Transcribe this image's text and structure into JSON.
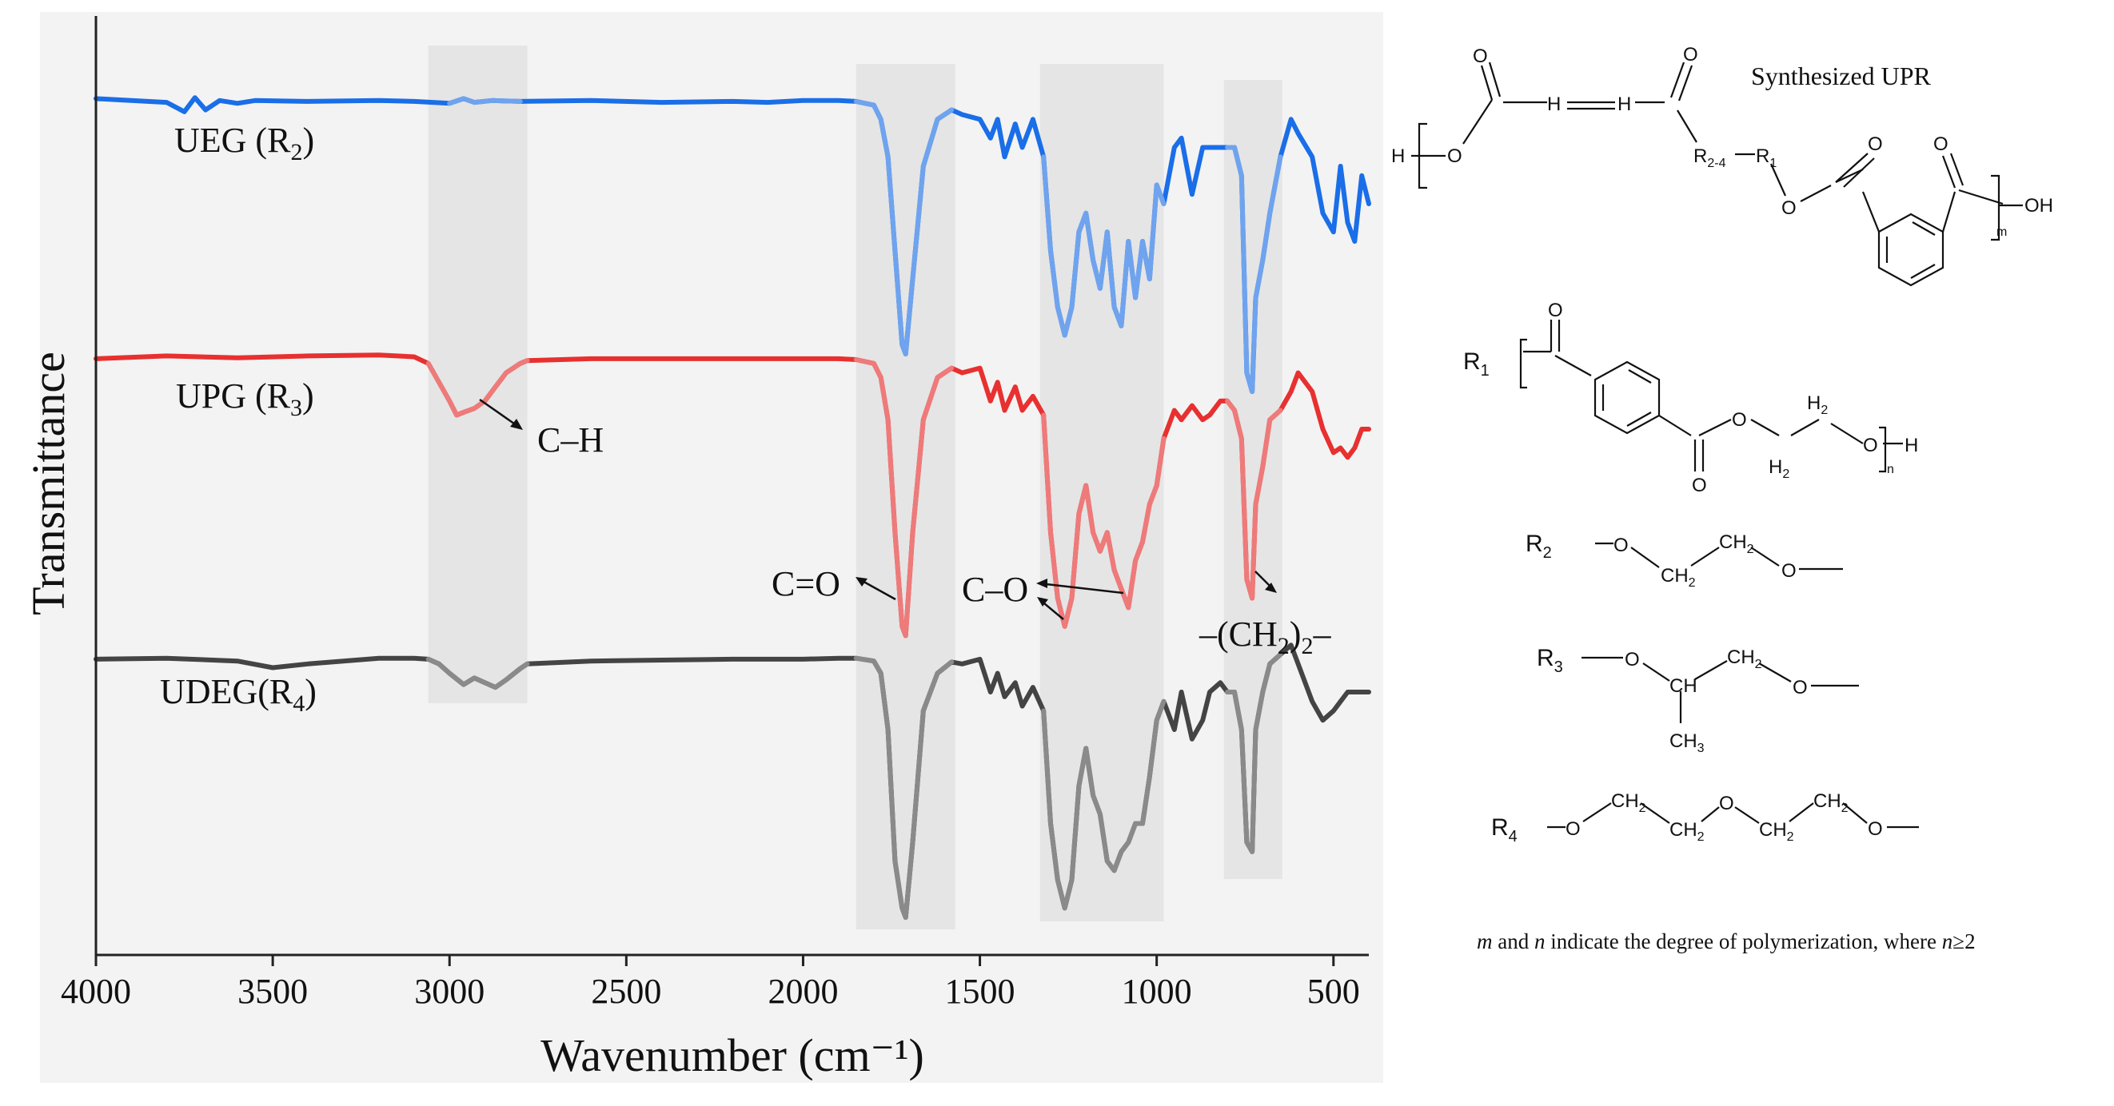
{
  "chart_data": {
    "type": "line",
    "title": "",
    "xlabel": "Wavenumber (cm⁻¹)",
    "ylabel": "Transmittance",
    "xlim": [
      4000,
      400
    ],
    "x_reversed": true,
    "xticks": [
      4000,
      3500,
      3000,
      2500,
      2000,
      1500,
      1000,
      500
    ],
    "xtick_labels": [
      "4000",
      "3500",
      "3000",
      "2500",
      "2000",
      "1500",
      "1000",
      "500"
    ],
    "y_unit": "relative transmittance (offset stacked, 0 = bottom of frame, 100 = top)",
    "ylim": [
      0,
      100
    ],
    "bands": [
      {
        "label": "C–H",
        "x_from": 3060,
        "x_to": 2780
      },
      {
        "label": "C=O",
        "x_from": 1850,
        "x_to": 1570
      },
      {
        "label": "C–O",
        "x_from": 1330,
        "x_to": 980
      },
      {
        "label": "–(CH₂)₂–",
        "x_from": 810,
        "x_to": 645
      }
    ],
    "series": [
      {
        "name": "UEG (R2)",
        "label_main": "UEG (R",
        "label_sub": "2",
        "label_end": ")",
        "color": "#1a6ee8",
        "color_light": "#6fa3ee",
        "x": [
          4000,
          3800,
          3750,
          3720,
          3690,
          3650,
          3600,
          3550,
          3400,
          3200,
          3100,
          3000,
          2960,
          2930,
          2880,
          2800,
          2600,
          2400,
          2200,
          2100,
          2000,
          1900,
          1850,
          1800,
          1780,
          1760,
          1740,
          1720,
          1710,
          1690,
          1660,
          1620,
          1580,
          1550,
          1500,
          1470,
          1450,
          1430,
          1400,
          1380,
          1350,
          1320,
          1300,
          1280,
          1260,
          1240,
          1220,
          1200,
          1180,
          1160,
          1140,
          1120,
          1100,
          1080,
          1060,
          1040,
          1020,
          1000,
          980,
          950,
          930,
          900,
          870,
          850,
          820,
          800,
          780,
          760,
          745,
          730,
          720,
          700,
          680,
          650,
          620,
          600,
          560,
          530,
          500,
          480,
          460,
          440,
          420,
          400
        ],
        "y": [
          91.2,
          90.8,
          89.8,
          91.3,
          90.0,
          91.0,
          90.7,
          91.0,
          90.9,
          91.0,
          90.9,
          90.7,
          91.2,
          90.8,
          91.0,
          90.9,
          91.0,
          90.8,
          90.9,
          90.8,
          91.0,
          91.0,
          90.9,
          90.5,
          89.0,
          85.0,
          75.0,
          65.0,
          64.0,
          72.0,
          84.0,
          89.0,
          90.0,
          89.5,
          89.0,
          87.0,
          89.0,
          85.0,
          88.5,
          86.0,
          89.0,
          85.0,
          75.0,
          69.0,
          66.0,
          69.0,
          77.0,
          79.0,
          74.0,
          71.0,
          77.0,
          69.0,
          67.0,
          76.0,
          70.0,
          76.0,
          72.0,
          82.0,
          80.0,
          86.0,
          87.0,
          81.0,
          86.0,
          86.0,
          86.0,
          86.0,
          86.0,
          83.0,
          62.0,
          60.0,
          70.0,
          74.0,
          79.0,
          85.0,
          89.0,
          87.5,
          85.0,
          79.0,
          77.0,
          84.0,
          78.0,
          76.0,
          83.0,
          80.0
        ]
      },
      {
        "name": "UPG (R3)",
        "label_main": "UPG (R",
        "label_sub": "3",
        "label_end": ")",
        "color": "#e83030",
        "color_light": "#ee7a7a",
        "x": [
          4000,
          3800,
          3600,
          3400,
          3200,
          3100,
          3060,
          3030,
          3000,
          2980,
          2960,
          2930,
          2900,
          2870,
          2840,
          2800,
          2780,
          2600,
          2400,
          2200,
          2000,
          1900,
          1850,
          1800,
          1780,
          1760,
          1740,
          1720,
          1710,
          1690,
          1660,
          1620,
          1580,
          1550,
          1500,
          1470,
          1450,
          1430,
          1400,
          1380,
          1350,
          1320,
          1300,
          1280,
          1260,
          1240,
          1220,
          1200,
          1180,
          1160,
          1140,
          1120,
          1100,
          1080,
          1060,
          1040,
          1020,
          1000,
          980,
          950,
          930,
          900,
          870,
          850,
          820,
          800,
          780,
          760,
          745,
          730,
          720,
          700,
          680,
          650,
          620,
          600,
          560,
          530,
          500,
          480,
          460,
          440,
          420,
          400
        ],
        "y": [
          63.5,
          63.8,
          63.6,
          63.8,
          63.9,
          63.7,
          63.0,
          61.0,
          59.0,
          57.5,
          57.8,
          58.2,
          59.0,
          60.5,
          62.0,
          63.0,
          63.3,
          63.5,
          63.5,
          63.5,
          63.5,
          63.5,
          63.4,
          63.0,
          61.5,
          57.0,
          45.0,
          35.0,
          34.0,
          45.0,
          57.0,
          61.5,
          62.5,
          62.0,
          62.5,
          59.0,
          61.0,
          58.0,
          60.5,
          58.0,
          59.5,
          57.5,
          45.0,
          38.0,
          35.0,
          38.0,
          47.0,
          50.0,
          45.0,
          43.0,
          45.0,
          41.0,
          39.0,
          37.0,
          42.0,
          44.0,
          48.0,
          50.0,
          55.0,
          58.0,
          57.0,
          58.5,
          57.0,
          57.5,
          59.0,
          59.0,
          58.0,
          55.0,
          40.0,
          38.0,
          48.0,
          52.0,
          57.0,
          58.0,
          60.0,
          62.0,
          60.0,
          56.0,
          53.5,
          54.0,
          53.0,
          54.0,
          56.0,
          56.0
        ]
      },
      {
        "name": "UDEG(R4)",
        "label_main": "UDEG(R",
        "label_sub": "4",
        "label_end": ")",
        "color": "#444444",
        "color_light": "#8a8a8a",
        "x": [
          4000,
          3800,
          3600,
          3500,
          3400,
          3200,
          3100,
          3060,
          3030,
          3000,
          2960,
          2930,
          2900,
          2870,
          2840,
          2800,
          2780,
          2600,
          2400,
          2200,
          2000,
          1900,
          1850,
          1800,
          1780,
          1760,
          1740,
          1720,
          1710,
          1690,
          1660,
          1620,
          1580,
          1550,
          1500,
          1470,
          1450,
          1430,
          1400,
          1380,
          1350,
          1320,
          1300,
          1280,
          1260,
          1240,
          1220,
          1200,
          1180,
          1160,
          1140,
          1120,
          1100,
          1080,
          1060,
          1040,
          1020,
          1000,
          980,
          950,
          930,
          900,
          870,
          850,
          820,
          800,
          780,
          760,
          745,
          730,
          720,
          700,
          680,
          650,
          620,
          600,
          560,
          530,
          500,
          480,
          460,
          440,
          420,
          400
        ],
        "y": [
          31.5,
          31.6,
          31.3,
          30.6,
          31.0,
          31.6,
          31.6,
          31.5,
          31.0,
          30.0,
          28.8,
          29.5,
          29.0,
          28.5,
          29.3,
          30.5,
          31.0,
          31.3,
          31.4,
          31.5,
          31.5,
          31.6,
          31.6,
          31.3,
          30.0,
          24.0,
          10.0,
          5.0,
          4.0,
          12.0,
          26.0,
          30.0,
          31.2,
          31.0,
          31.5,
          28.0,
          30.0,
          27.5,
          29.0,
          26.5,
          28.5,
          26.0,
          14.0,
          8.0,
          5.0,
          8.0,
          18.0,
          22.0,
          17.0,
          15.0,
          10.0,
          9.0,
          11.0,
          12.0,
          14.0,
          14.0,
          19.0,
          25.0,
          27.0,
          24.0,
          28.0,
          23.0,
          25.0,
          28.0,
          29.0,
          28.0,
          28.0,
          24.0,
          12.0,
          11.0,
          24.0,
          28.0,
          31.0,
          32.0,
          33.0,
          31.0,
          27.0,
          25.0,
          26.0,
          27.0,
          28.0,
          28.0,
          28.0,
          28.0
        ]
      }
    ],
    "annotations": [
      {
        "name": "ch-label",
        "text": "C–H"
      },
      {
        "name": "co-double-label",
        "text": "C=O"
      },
      {
        "name": "co-single-label",
        "text": "C–O"
      }
    ]
  },
  "structures": {
    "title": "Synthesized UPR",
    "upr": {
      "h_end": "H",
      "o_ester": "O",
      "o_top1": "O",
      "o_top2": "O",
      "ch1": "H",
      "ch2": "H",
      "r_range": "R",
      "r_range_sub": "2-4",
      "r1": "R",
      "r1_sub": "1",
      "o_link": "O",
      "o_ring1": "O",
      "o_ring2": "O",
      "oh": "OH",
      "m": "m"
    },
    "r1": {
      "label": "R",
      "label_sub": "1",
      "o_top": "O",
      "o_bottom": "O",
      "o_chain": "O",
      "h2_top": "H",
      "h2_top_sub": "2",
      "h2_bottom": "H",
      "h2_bottom_sub": "2",
      "o_end": "O",
      "h_end": "H",
      "n": "n"
    },
    "r2": {
      "label": "R",
      "label_sub": "2",
      "o1": "O",
      "ch2_a": "CH",
      "ch2_a_sub": "2",
      "ch2_b": "CH",
      "ch2_b_sub": "2",
      "o2": "O"
    },
    "r3": {
      "label": "R",
      "label_sub": "3",
      "o1": "O",
      "ch2": "CH",
      "ch2_sub": "2",
      "ch": "CH",
      "ch3": "CH",
      "ch3_sub": "3",
      "o2": "O"
    },
    "r4": {
      "label": "R",
      "label_sub": "4",
      "o1": "O",
      "ch2_a": "CH",
      "ch2_a_sub": "2",
      "ch2_b": "CH",
      "ch2_b_sub": "2",
      "o_mid": "O",
      "ch2_c": "CH",
      "ch2_c_sub": "2",
      "ch2_d": "CH",
      "ch2_d_sub": "2",
      "o2": "O"
    },
    "footnote": {
      "m": "m",
      "and": " and ",
      "n": "n",
      "text": " indicate the degree of polymerization, where ",
      "n2": "n",
      "cond": "≥2"
    }
  }
}
